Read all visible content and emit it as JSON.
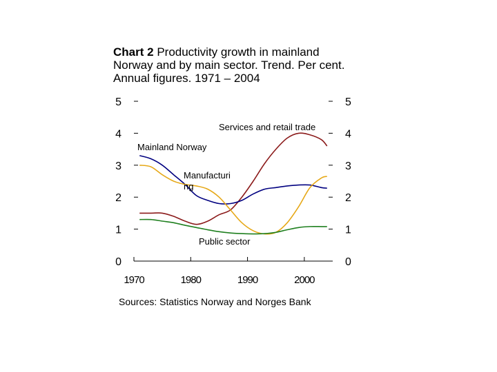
{
  "title": {
    "bold": "Chart 2",
    "text": "Productivity growth in mainland Norway and by main sector. Trend. Per cent. Annual figures. 1971 – 2004"
  },
  "source": "Sources: Statistics Norway and Norges Bank",
  "chart_data": {
    "type": "line",
    "title": "Chart 2 Productivity growth in mainland Norway and by main sector. Trend. Per cent. Annual figures. 1971 – 2004",
    "xlabel": "",
    "ylabel": "",
    "xlim": [
      1970,
      2005
    ],
    "ylim": [
      0,
      5
    ],
    "x_ticks": [
      1970,
      1980,
      1990,
      2000
    ],
    "y_ticks": [
      0,
      1,
      2,
      3,
      4,
      5
    ],
    "grid": false,
    "legend": "inline labels",
    "series": [
      {
        "name": "Services and retail trade",
        "color": "#8B1A1A",
        "x": [
          1971,
          1973,
          1975,
          1977,
          1979,
          1981,
          1983,
          1985,
          1987,
          1989,
          1991,
          1993,
          1995,
          1997,
          1999,
          2001,
          2003,
          2004
        ],
        "y": [
          1.5,
          1.5,
          1.5,
          1.4,
          1.25,
          1.15,
          1.25,
          1.45,
          1.6,
          2.0,
          2.5,
          3.05,
          3.5,
          3.85,
          4.0,
          3.95,
          3.8,
          3.6
        ]
      },
      {
        "name": "Mainland Norway",
        "color": "#000080",
        "x": [
          1971,
          1973,
          1975,
          1977,
          1979,
          1981,
          1983,
          1985,
          1987,
          1989,
          1991,
          1993,
          1995,
          1997,
          1999,
          2001,
          2003,
          2004
        ],
        "y": [
          3.3,
          3.2,
          3.0,
          2.7,
          2.4,
          2.05,
          1.9,
          1.8,
          1.8,
          1.9,
          2.1,
          2.25,
          2.3,
          2.35,
          2.38,
          2.38,
          2.3,
          2.28
        ]
      },
      {
        "name": "Manufacturing",
        "color": "#E6A817",
        "x": [
          1971,
          1973,
          1975,
          1977,
          1979,
          1981,
          1983,
          1985,
          1987,
          1989,
          1991,
          1993,
          1995,
          1997,
          1999,
          2001,
          2003,
          2004
        ],
        "y": [
          3.0,
          2.95,
          2.7,
          2.5,
          2.4,
          2.35,
          2.25,
          2.0,
          1.6,
          1.2,
          0.95,
          0.85,
          0.9,
          1.2,
          1.7,
          2.3,
          2.6,
          2.65
        ]
      },
      {
        "name": "Public sector",
        "color": "#1E7F1E",
        "x": [
          1971,
          1973,
          1975,
          1977,
          1979,
          1981,
          1983,
          1985,
          1987,
          1989,
          1991,
          1993,
          1995,
          1997,
          1999,
          2001,
          2003,
          2004
        ],
        "y": [
          1.3,
          1.3,
          1.25,
          1.2,
          1.12,
          1.05,
          0.98,
          0.92,
          0.88,
          0.86,
          0.85,
          0.86,
          0.9,
          0.98,
          1.05,
          1.08,
          1.08,
          1.08
        ]
      }
    ],
    "series_labels": [
      "Services and retail trade",
      "Mainland Norway",
      "Manufacturi ng",
      "Public sector"
    ]
  }
}
